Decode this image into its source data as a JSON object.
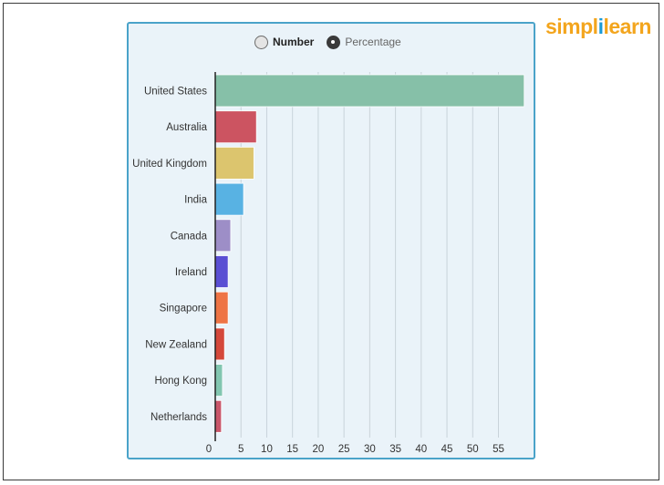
{
  "controls": {
    "number_label": "Number",
    "percentage_label": "Percentage",
    "selected": "Percentage"
  },
  "logo": {
    "part1": "simpl",
    "part2": "i",
    "part3": "learn",
    "colors": {
      "primary": "#f3a51d",
      "accent": "#1b9bd7"
    }
  },
  "chart_data": {
    "type": "bar",
    "orientation": "horizontal",
    "categories": [
      "United States",
      "Australia",
      "United Kingdom",
      "India",
      "Canada",
      "Ireland",
      "Singapore",
      "New Zealand",
      "Hong Kong",
      "Netherlands"
    ],
    "values": [
      60,
      8,
      7.5,
      5.5,
      3,
      2.5,
      2.5,
      1.8,
      1.4,
      1.2
    ],
    "colors": [
      "#86c0a8",
      "#cc5461",
      "#dcc56e",
      "#58b2e3",
      "#9d8ec7",
      "#5a4fd3",
      "#ee7445",
      "#d4483a",
      "#82c6b0",
      "#c9566a"
    ],
    "xticks": [
      0,
      5,
      10,
      15,
      20,
      25,
      30,
      35,
      40,
      45,
      50,
      55
    ],
    "xlim": [
      0,
      60
    ],
    "grid": true,
    "title": "",
    "xlabel": "",
    "ylabel": ""
  }
}
